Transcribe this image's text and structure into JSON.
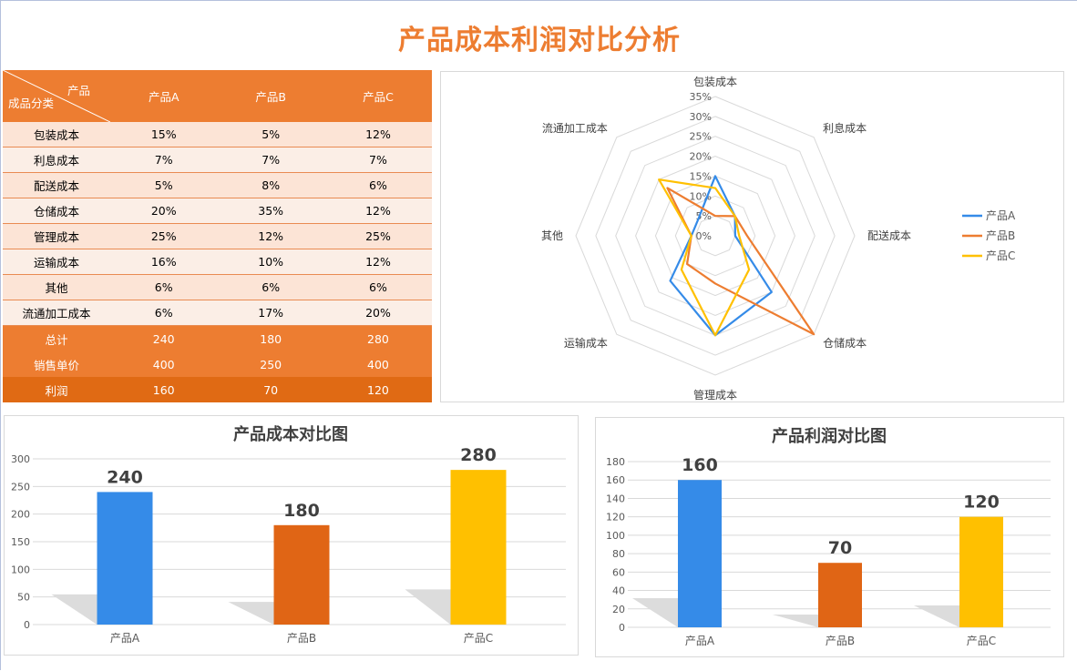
{
  "title": "产品成本利润对比分析",
  "table": {
    "corner_top": "产品",
    "corner_bottom": "成品分类",
    "columns": [
      "产品A",
      "产品B",
      "产品C"
    ],
    "rows": [
      {
        "label": "包装成本",
        "values": [
          "15%",
          "5%",
          "12%"
        ]
      },
      {
        "label": "利息成本",
        "values": [
          "7%",
          "7%",
          "7%"
        ]
      },
      {
        "label": "配送成本",
        "values": [
          "5%",
          "8%",
          "6%"
        ]
      },
      {
        "label": "仓储成本",
        "values": [
          "20%",
          "35%",
          "12%"
        ]
      },
      {
        "label": "管理成本",
        "values": [
          "25%",
          "12%",
          "25%"
        ]
      },
      {
        "label": "运输成本",
        "values": [
          "16%",
          "10%",
          "12%"
        ]
      },
      {
        "label": "其他",
        "values": [
          "6%",
          "6%",
          "6%"
        ]
      },
      {
        "label": "流通加工成本",
        "values": [
          "6%",
          "17%",
          "20%"
        ]
      }
    ],
    "summary": [
      {
        "label": "总计",
        "values": [
          "240",
          "180",
          "280"
        ]
      },
      {
        "label": "销售单价",
        "values": [
          "400",
          "250",
          "400"
        ]
      },
      {
        "label": "利润",
        "values": [
          "160",
          "70",
          "120"
        ]
      }
    ]
  },
  "colors": {
    "accent": "#ED7D31",
    "productA": "#358BE8",
    "productB": "#E06515",
    "productC": "#FFC000",
    "radarB": "#ED7D31"
  },
  "chart_data": [
    {
      "type": "radar",
      "categories": [
        "包装成本",
        "利息成本",
        "配送成本",
        "仓储成本",
        "管理成本",
        "运输成本",
        "其他",
        "流通加工成本"
      ],
      "ticks": [
        "0%",
        "5%",
        "10%",
        "15%",
        "20%",
        "25%",
        "30%",
        "35%"
      ],
      "range": [
        0,
        35
      ],
      "legend": "right",
      "series": [
        {
          "name": "产品A",
          "values": [
            15,
            7,
            5,
            20,
            25,
            16,
            6,
            6
          ]
        },
        {
          "name": "产品B",
          "values": [
            5,
            7,
            8,
            35,
            12,
            10,
            6,
            17
          ]
        },
        {
          "name": "产品C",
          "values": [
            12,
            7,
            6,
            12,
            25,
            12,
            6,
            20
          ]
        }
      ]
    },
    {
      "type": "bar",
      "title": "产品成本对比图",
      "categories": [
        "产品A",
        "产品B",
        "产品C"
      ],
      "values": [
        240,
        180,
        280
      ],
      "ylim": [
        0,
        300
      ],
      "yticks": [
        "0",
        "50",
        "100",
        "150",
        "200",
        "250",
        "300"
      ],
      "grid": true
    },
    {
      "type": "bar",
      "title": "产品利润对比图",
      "categories": [
        "产品A",
        "产品B",
        "产品C"
      ],
      "values": [
        160,
        70,
        120
      ],
      "ylim": [
        0,
        180
      ],
      "yticks": [
        "0",
        "20",
        "40",
        "60",
        "80",
        "100",
        "120",
        "140",
        "160",
        "180"
      ],
      "grid": true
    }
  ]
}
